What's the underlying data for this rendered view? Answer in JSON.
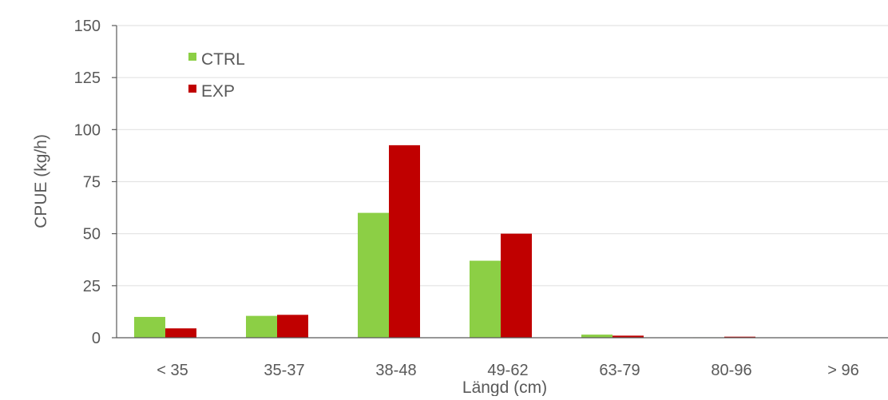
{
  "chart_data": {
    "type": "bar",
    "xlabel": "Längd (cm)",
    "ylabel": "CPUE (kg/h)",
    "ylim": [
      0,
      150
    ],
    "yticks": [
      0,
      25,
      50,
      75,
      100,
      125,
      150
    ],
    "categories": [
      "< 35",
      "35-37",
      "38-48",
      "49-62",
      "63-79",
      "80-96",
      "> 96"
    ],
    "series": [
      {
        "name": "CTRL",
        "color": "#8ccf45",
        "values": [
          10,
          10.5,
          60,
          37,
          1.5,
          0.2,
          0
        ]
      },
      {
        "name": "EXP",
        "color": "#c00000",
        "values": [
          4.5,
          11,
          92.5,
          50,
          1,
          0.5,
          0
        ]
      }
    ],
    "legend": "top-left",
    "grid": true
  }
}
